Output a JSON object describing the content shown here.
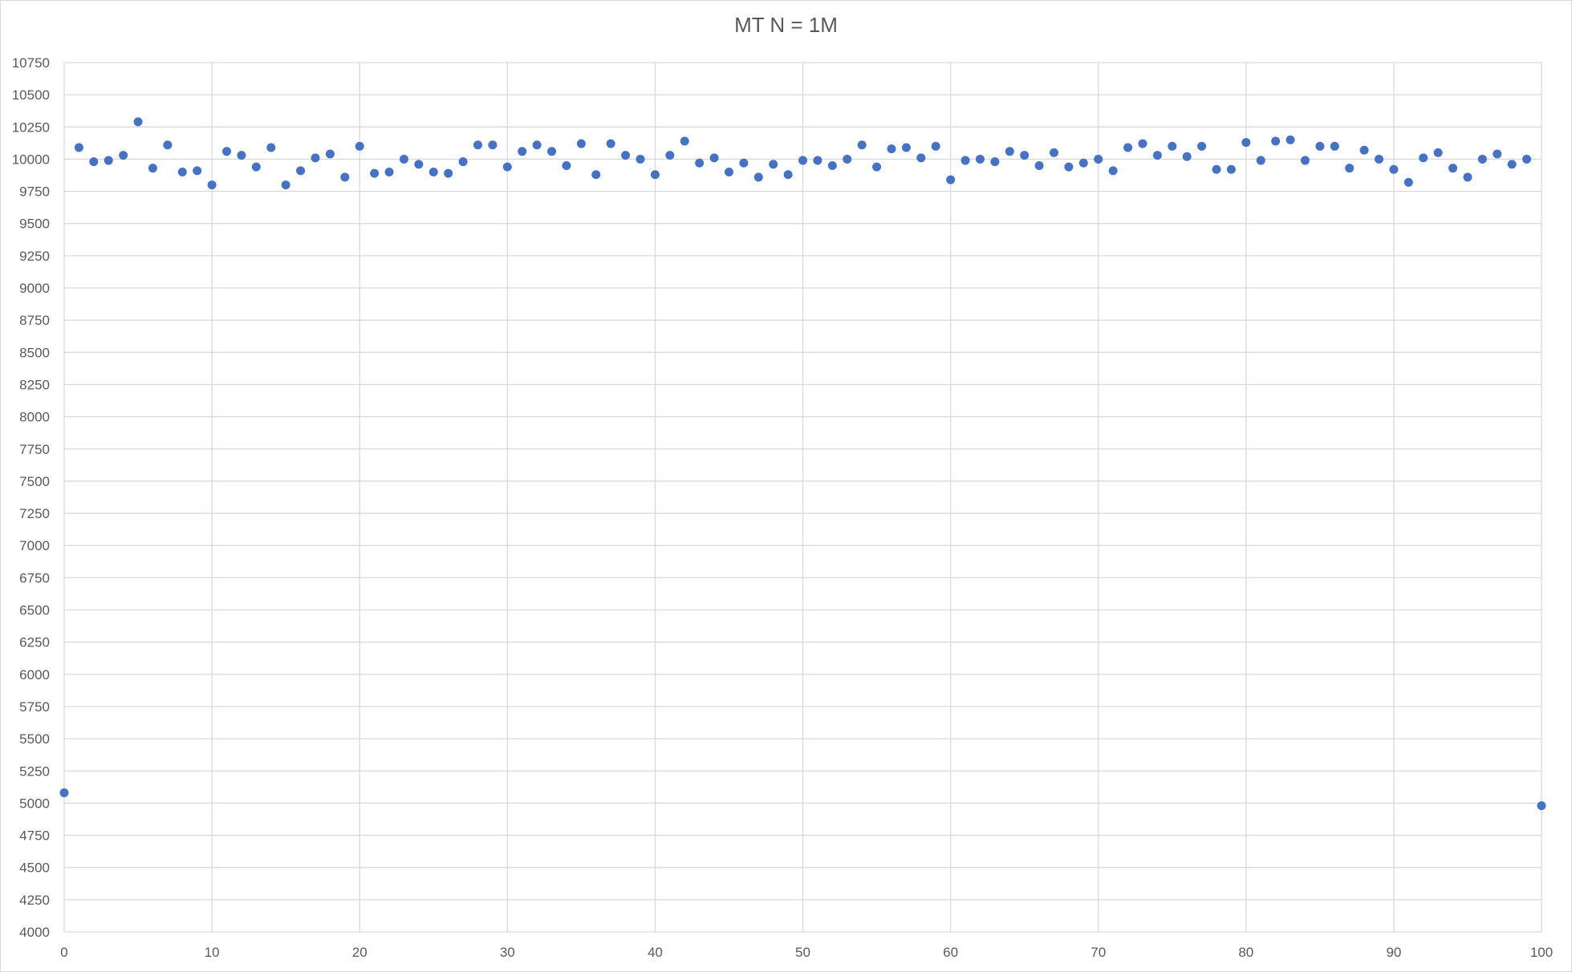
{
  "chart_data": {
    "type": "scatter",
    "title": "MT N = 1M",
    "xlabel": "",
    "ylabel": "",
    "xlim": [
      0,
      100
    ],
    "ylim": [
      4000,
      10750
    ],
    "x_ticks": [
      0,
      10,
      20,
      30,
      40,
      50,
      60,
      70,
      80,
      90,
      100
    ],
    "y_ticks": [
      4000,
      4250,
      4500,
      4750,
      5000,
      5250,
      5500,
      5750,
      6000,
      6250,
      6500,
      6750,
      7000,
      7250,
      7500,
      7750,
      8000,
      8250,
      8500,
      8750,
      9000,
      9250,
      9500,
      9750,
      10000,
      10250,
      10500,
      10750
    ],
    "grid": true,
    "legend": "none",
    "marker_color": "#4472c4",
    "series": [
      {
        "x": [
          0,
          1,
          2,
          3,
          4,
          5,
          6,
          7,
          8,
          9,
          10,
          11,
          12,
          13,
          14,
          15,
          16,
          17,
          18,
          19,
          20,
          21,
          22,
          23,
          24,
          25,
          26,
          27,
          28,
          29,
          30,
          31,
          32,
          33,
          34,
          35,
          36,
          37,
          38,
          39,
          40,
          41,
          42,
          43,
          44,
          45,
          46,
          47,
          48,
          49,
          50,
          51,
          52,
          53,
          54,
          55,
          56,
          57,
          58,
          59,
          60,
          61,
          62,
          63,
          64,
          65,
          66,
          67,
          68,
          69,
          70,
          71,
          72,
          73,
          74,
          75,
          76,
          77,
          78,
          79,
          80,
          81,
          82,
          83,
          84,
          85,
          86,
          87,
          88,
          89,
          90,
          91,
          92,
          93,
          94,
          95,
          96,
          97,
          98,
          99,
          100
        ],
        "y": [
          5080,
          10090,
          9980,
          9990,
          10030,
          10290,
          9930,
          10110,
          9900,
          9910,
          9800,
          10060,
          10030,
          9940,
          10090,
          9800,
          9910,
          10010,
          10040,
          9860,
          10100,
          9890,
          9900,
          10000,
          9960,
          9900,
          9890,
          9980,
          10110,
          10110,
          9940,
          10060,
          10110,
          10060,
          9950,
          10120,
          9880,
          10120,
          10030,
          10000,
          9880,
          10030,
          10140,
          9970,
          10010,
          9900,
          9970,
          9860,
          9960,
          9880,
          9990,
          9990,
          9950,
          10000,
          10110,
          9940,
          10080,
          10090,
          10010,
          10100,
          9840,
          9990,
          10000,
          9980,
          10060,
          10030,
          9950,
          10050,
          9940,
          9970,
          10000,
          9910,
          10090,
          10120,
          10030,
          10100,
          10020,
          10100,
          9920,
          9920,
          10130,
          9990,
          10140,
          10150,
          9990,
          10100,
          10100,
          9930,
          10070,
          10000,
          9920,
          9820,
          10010,
          10050,
          9930,
          9860,
          10000,
          10040,
          9960,
          10000,
          4980
        ]
      }
    ]
  }
}
